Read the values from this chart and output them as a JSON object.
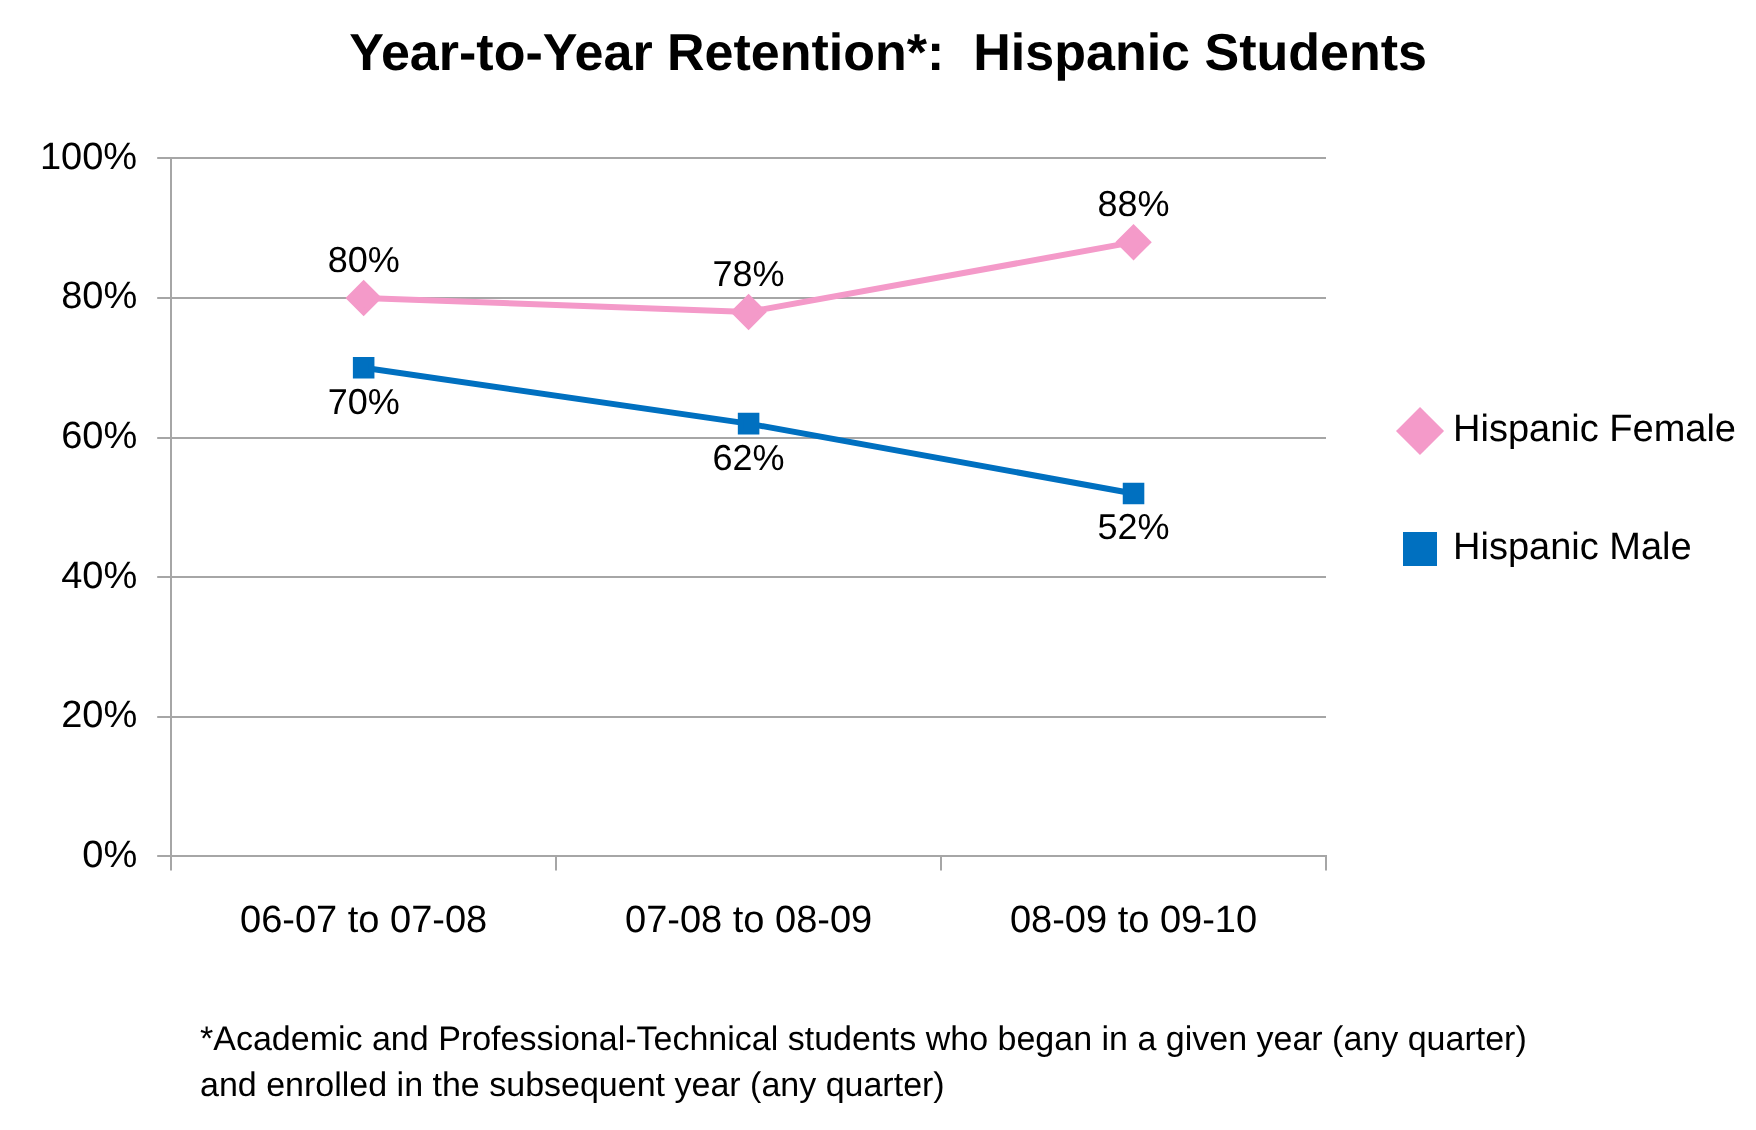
{
  "chart_data": {
    "type": "line",
    "title": "Year-to-Year Retention*:  Hispanic Students",
    "categories": [
      "06-07 to 07-08",
      "07-08 to 08-09",
      "08-09 to 09-10"
    ],
    "series": [
      {
        "name": "Hispanic Female",
        "color": "#f49ac9",
        "marker": "diamond",
        "values": [
          80,
          78,
          88
        ],
        "value_labels": [
          "80%",
          "78%",
          "88%"
        ]
      },
      {
        "name": "Hispanic Male",
        "color": "#0070c0",
        "marker": "square",
        "values": [
          70,
          62,
          52
        ],
        "value_labels": [
          "70%",
          "62%",
          "52%"
        ]
      }
    ],
    "ylim": [
      0,
      100
    ],
    "yticks": [
      {
        "value": 0,
        "label": "0%"
      },
      {
        "value": 20,
        "label": "20%"
      },
      {
        "value": 40,
        "label": "40%"
      },
      {
        "value": 60,
        "label": "60%"
      },
      {
        "value": 80,
        "label": "80%"
      },
      {
        "value": 100,
        "label": "100%"
      }
    ],
    "grid": "y",
    "legend": "right",
    "line_style": "solid",
    "annotations": [
      "*Academic and Professional-Technical students who began in a given year (any quarter) and enrolled in the subsequent year (any quarter)"
    ]
  }
}
